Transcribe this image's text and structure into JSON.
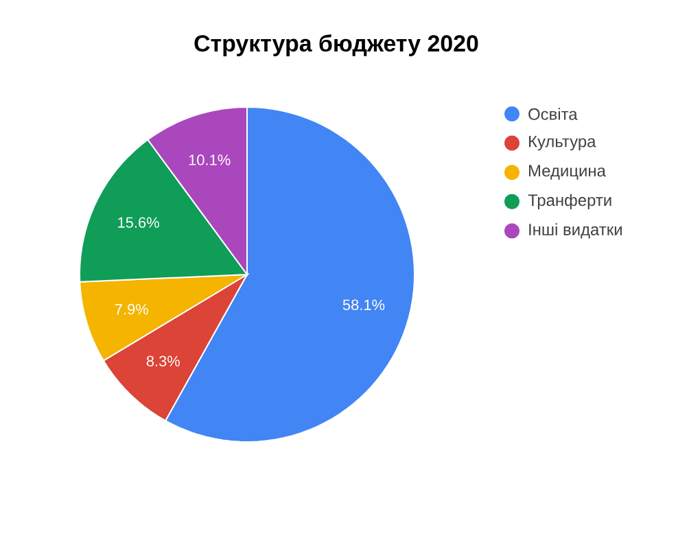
{
  "chart_data": {
    "type": "pie",
    "title": "Структура бюджету 2020",
    "categories": [
      "Освіта",
      "Культура",
      "Медицина",
      "Транферти",
      "Інші видатки"
    ],
    "values": [
      58.1,
      8.3,
      7.9,
      15.6,
      10.1
    ],
    "value_labels": [
      "58.1%",
      "8.3%",
      "7.9%",
      "15.6%",
      "10.1%"
    ],
    "colors": [
      "#4285f4",
      "#db4437",
      "#f4b400",
      "#0f9d58",
      "#ab47bc"
    ],
    "legend": "right"
  }
}
